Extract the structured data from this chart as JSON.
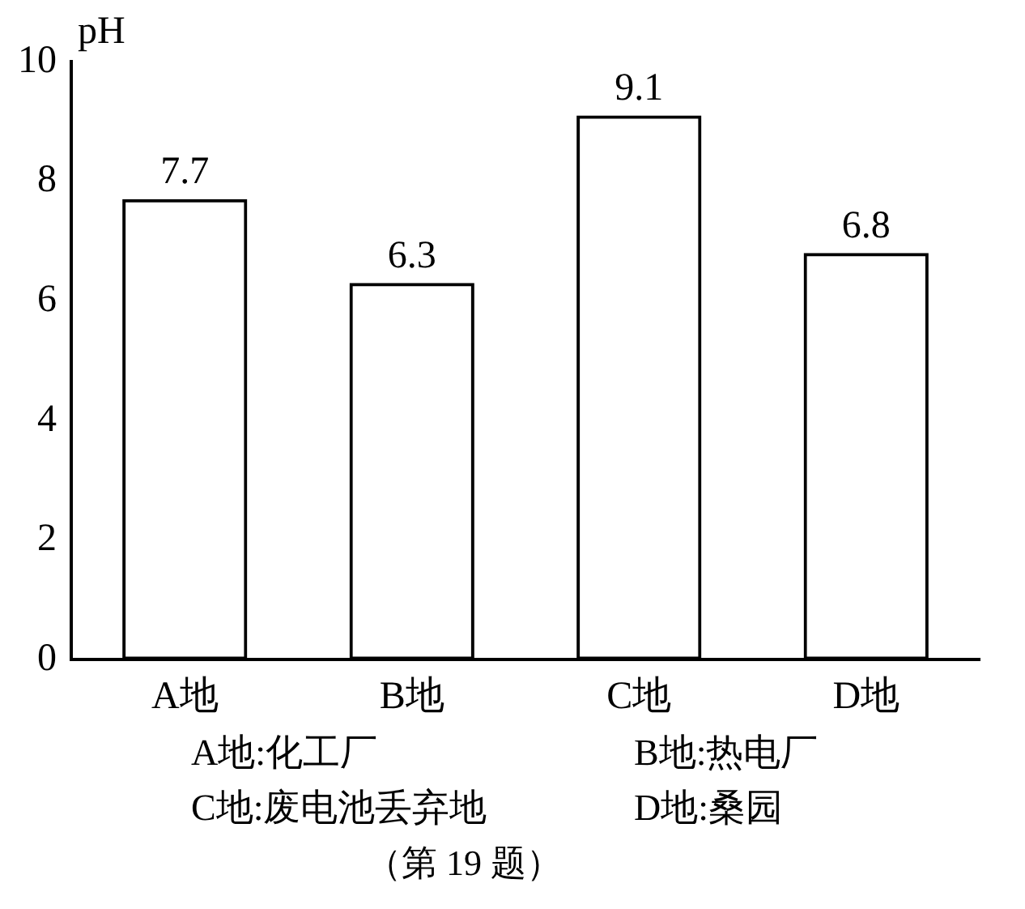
{
  "chart_data": {
    "type": "bar",
    "ylabel": "pH",
    "categories": [
      "A地",
      "B地",
      "C地",
      "D地"
    ],
    "values": [
      7.7,
      6.3,
      9.1,
      6.8
    ],
    "color": "#000000",
    "ylim": [
      0,
      10
    ],
    "yticks": [
      0,
      2,
      4,
      6,
      8,
      10
    ],
    "data_labels": true,
    "grid": false,
    "legend": false,
    "annotations": [
      "A地:化工厂",
      "B地:热电厂",
      "C地:废电池丢弃地",
      "D地:桑园",
      "（第 19 题）"
    ]
  }
}
